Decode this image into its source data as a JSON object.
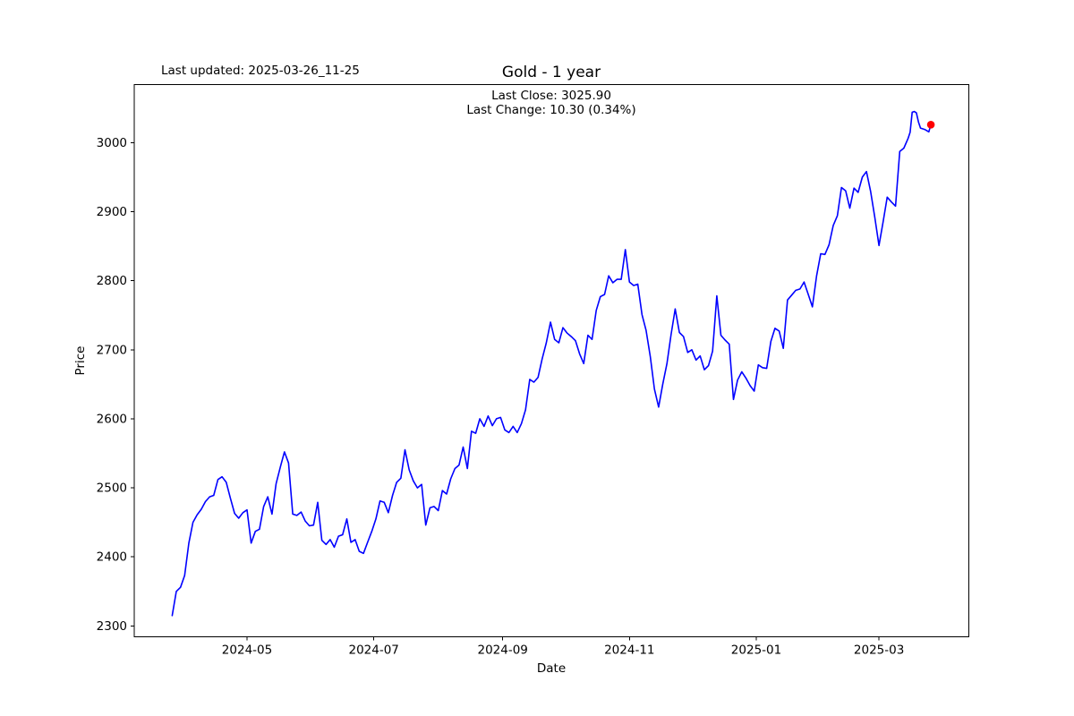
{
  "header": {
    "last_updated": "Last updated: 2025-03-26_11-25"
  },
  "chart_data": {
    "type": "line",
    "title": "Gold - 1 year",
    "xlabel": "Date",
    "ylabel": "Price",
    "annotations": {
      "line1": "Last Close: 3025.90",
      "line2": "Last Change: 10.30 (0.34%)"
    },
    "series_name": "Gold",
    "start_date": "2024-03-26",
    "end_date": "2025-03-26",
    "line_color": "#0000ff",
    "marker_color": "#ff0000",
    "axis_color": "#000000",
    "background_color": "#ffffff",
    "grid": false,
    "legend": false,
    "ylim": [
      2284,
      3084
    ],
    "xlim_days": [
      -18.25,
      383.25
    ],
    "y_ticks": [
      2300,
      2400,
      2500,
      2600,
      2700,
      2800,
      2900,
      3000
    ],
    "x_ticks": [
      {
        "label": "2024-05",
        "day": 36
      },
      {
        "label": "2024-07",
        "day": 97
      },
      {
        "label": "2024-09",
        "day": 159
      },
      {
        "label": "2024-11",
        "day": 220
      },
      {
        "label": "2025-01",
        "day": 281
      },
      {
        "label": "2025-03",
        "day": 340
      }
    ],
    "last_point": {
      "day": 365,
      "price": 3025.9,
      "date": "2025-03-26"
    },
    "last_close": 3025.9,
    "last_change": 10.3,
    "last_change_pct": 0.34,
    "series": [
      {
        "name": "Gold",
        "points_format": [
          "day_offset_from_2024-03-26",
          "price"
        ],
        "points": [
          [
            0,
            2315
          ],
          [
            2,
            2350
          ],
          [
            4,
            2356
          ],
          [
            6,
            2373
          ],
          [
            8,
            2420
          ],
          [
            10,
            2450
          ],
          [
            12,
            2461
          ],
          [
            14,
            2469
          ],
          [
            16,
            2480
          ],
          [
            18,
            2487
          ],
          [
            20,
            2489
          ],
          [
            22,
            2512
          ],
          [
            24,
            2516
          ],
          [
            26,
            2508
          ],
          [
            28,
            2485
          ],
          [
            30,
            2463
          ],
          [
            32,
            2456
          ],
          [
            34,
            2464
          ],
          [
            36,
            2468
          ],
          [
            38,
            2420
          ],
          [
            40,
            2437
          ],
          [
            42,
            2440
          ],
          [
            44,
            2473
          ],
          [
            46,
            2487
          ],
          [
            48,
            2462
          ],
          [
            50,
            2506
          ],
          [
            52,
            2530
          ],
          [
            54,
            2552
          ],
          [
            56,
            2536
          ],
          [
            58,
            2462
          ],
          [
            60,
            2460
          ],
          [
            62,
            2465
          ],
          [
            64,
            2452
          ],
          [
            66,
            2445
          ],
          [
            68,
            2446
          ],
          [
            70,
            2479
          ],
          [
            72,
            2424
          ],
          [
            74,
            2418
          ],
          [
            76,
            2425
          ],
          [
            78,
            2414
          ],
          [
            80,
            2430
          ],
          [
            82,
            2432
          ],
          [
            84,
            2455
          ],
          [
            86,
            2421
          ],
          [
            88,
            2425
          ],
          [
            90,
            2408
          ],
          [
            92,
            2405
          ],
          [
            94,
            2421
          ],
          [
            96,
            2437
          ],
          [
            98,
            2455
          ],
          [
            100,
            2481
          ],
          [
            102,
            2479
          ],
          [
            104,
            2464
          ],
          [
            106,
            2489
          ],
          [
            108,
            2508
          ],
          [
            110,
            2514
          ],
          [
            112,
            2555
          ],
          [
            114,
            2526
          ],
          [
            116,
            2510
          ],
          [
            118,
            2500
          ],
          [
            120,
            2505
          ],
          [
            122,
            2446
          ],
          [
            124,
            2471
          ],
          [
            126,
            2473
          ],
          [
            128,
            2467
          ],
          [
            130,
            2496
          ],
          [
            132,
            2491
          ],
          [
            134,
            2513
          ],
          [
            136,
            2528
          ],
          [
            138,
            2533
          ],
          [
            140,
            2559
          ],
          [
            142,
            2528
          ],
          [
            144,
            2582
          ],
          [
            146,
            2579
          ],
          [
            148,
            2600
          ],
          [
            150,
            2589
          ],
          [
            152,
            2604
          ],
          [
            154,
            2590
          ],
          [
            156,
            2600
          ],
          [
            158,
            2602
          ],
          [
            160,
            2584
          ],
          [
            162,
            2580
          ],
          [
            164,
            2589
          ],
          [
            166,
            2580
          ],
          [
            168,
            2593
          ],
          [
            170,
            2613
          ],
          [
            172,
            2657
          ],
          [
            174,
            2653
          ],
          [
            176,
            2660
          ],
          [
            178,
            2687
          ],
          [
            180,
            2710
          ],
          [
            182,
            2740
          ],
          [
            184,
            2715
          ],
          [
            186,
            2710
          ],
          [
            188,
            2732
          ],
          [
            190,
            2724
          ],
          [
            192,
            2719
          ],
          [
            194,
            2713
          ],
          [
            196,
            2694
          ],
          [
            198,
            2680
          ],
          [
            200,
            2721
          ],
          [
            202,
            2715
          ],
          [
            204,
            2757
          ],
          [
            206,
            2777
          ],
          [
            208,
            2780
          ],
          [
            210,
            2807
          ],
          [
            212,
            2797
          ],
          [
            214,
            2802
          ],
          [
            216,
            2802
          ],
          [
            218,
            2845
          ],
          [
            220,
            2798
          ],
          [
            222,
            2793
          ],
          [
            224,
            2795
          ],
          [
            226,
            2751
          ],
          [
            228,
            2728
          ],
          [
            230,
            2690
          ],
          [
            232,
            2643
          ],
          [
            234,
            2617
          ],
          [
            236,
            2650
          ],
          [
            238,
            2680
          ],
          [
            240,
            2722
          ],
          [
            242,
            2759
          ],
          [
            244,
            2725
          ],
          [
            246,
            2719
          ],
          [
            248,
            2696
          ],
          [
            250,
            2700
          ],
          [
            252,
            2685
          ],
          [
            254,
            2691
          ],
          [
            256,
            2671
          ],
          [
            258,
            2677
          ],
          [
            260,
            2698
          ],
          [
            262,
            2778
          ],
          [
            264,
            2721
          ],
          [
            266,
            2714
          ],
          [
            268,
            2708
          ],
          [
            270,
            2628
          ],
          [
            272,
            2656
          ],
          [
            274,
            2668
          ],
          [
            276,
            2659
          ],
          [
            278,
            2648
          ],
          [
            280,
            2640
          ],
          [
            282,
            2678
          ],
          [
            284,
            2674
          ],
          [
            286,
            2673
          ],
          [
            288,
            2712
          ],
          [
            290,
            2731
          ],
          [
            292,
            2727
          ],
          [
            294,
            2702
          ],
          [
            296,
            2772
          ],
          [
            298,
            2779
          ],
          [
            300,
            2786
          ],
          [
            302,
            2788
          ],
          [
            304,
            2798
          ],
          [
            306,
            2780
          ],
          [
            308,
            2762
          ],
          [
            310,
            2807
          ],
          [
            312,
            2839
          ],
          [
            314,
            2838
          ],
          [
            316,
            2852
          ],
          [
            318,
            2880
          ],
          [
            320,
            2894
          ],
          [
            322,
            2935
          ],
          [
            324,
            2930
          ],
          [
            326,
            2905
          ],
          [
            328,
            2934
          ],
          [
            330,
            2928
          ],
          [
            332,
            2950
          ],
          [
            334,
            2958
          ],
          [
            336,
            2929
          ],
          [
            338,
            2892
          ],
          [
            340,
            2851
          ],
          [
            342,
            2885
          ],
          [
            344,
            2921
          ],
          [
            346,
            2914
          ],
          [
            348,
            2908
          ],
          [
            350,
            2987
          ],
          [
            352,
            2992
          ],
          [
            354,
            3006
          ],
          [
            355,
            3015
          ],
          [
            356,
            3044
          ],
          [
            357,
            3045
          ],
          [
            358,
            3043
          ],
          [
            359,
            3030
          ],
          [
            360,
            3021
          ],
          [
            362,
            3019
          ],
          [
            364,
            3015.6
          ],
          [
            365,
            3025.9
          ]
        ]
      }
    ]
  }
}
